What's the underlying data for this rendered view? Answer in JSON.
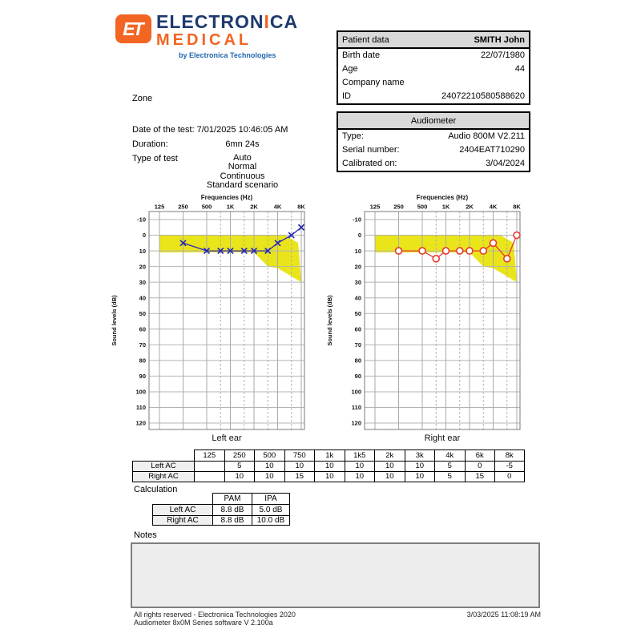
{
  "logo": {
    "icon_text": "ET",
    "line1_start": "ELECTRON",
    "line1_accent": "I",
    "line1_end": "CA",
    "line2": "MEDICAL",
    "tagline": "by Electronica Technologies"
  },
  "patient": {
    "header": "Patient data",
    "name": "SMITH John",
    "rows": [
      {
        "label": "Birth date",
        "value": "22/07/1980"
      },
      {
        "label": "Age",
        "value": "44"
      },
      {
        "label": "Company name",
        "value": ""
      },
      {
        "label": "ID",
        "value": "24072210580588620"
      }
    ]
  },
  "audiometer": {
    "header": "Audiometer",
    "rows": [
      {
        "label": "Type:",
        "value": "Audio 800M V2.211"
      },
      {
        "label": "Serial number:",
        "value": "2404EAT710290"
      },
      {
        "label": "Calibrated on:",
        "value": "3/04/2024"
      }
    ]
  },
  "test_info": {
    "zone_label": "Zone",
    "rows": [
      {
        "label": "Date of the test:",
        "value": "7/01/2025 10:46:05 AM"
      },
      {
        "label": "Duration:",
        "value": "6mn 24s"
      }
    ],
    "type_label": "Type of test",
    "type_values": [
      "Auto",
      "Normal",
      "Continuous",
      "Standard scenario"
    ]
  },
  "chart_data": [
    {
      "type": "line",
      "ear": "left",
      "title": "Frequencies (Hz)",
      "ylabel": "Sound levels (dB)",
      "caption": "Left ear",
      "x_tick_labels": [
        "125",
        "250",
        "500",
        "1K",
        "2K",
        "4K",
        "8K"
      ],
      "x_tick_freqs": [
        125,
        250,
        500,
        1000,
        2000,
        4000,
        8000
      ],
      "x_minor_freqs": [
        750,
        1500,
        3000,
        6000
      ],
      "xlim": [
        125,
        8000
      ],
      "ylim": [
        -10,
        120
      ],
      "y_tick_step": 10,
      "marker": "x",
      "series_color": "#2a2ab5",
      "frequencies_hz": [
        250,
        500,
        750,
        1000,
        1500,
        2000,
        3000,
        4000,
        6000,
        8000
      ],
      "values_db": [
        5,
        10,
        10,
        10,
        10,
        10,
        10,
        5,
        0,
        -5
      ],
      "normal_zone_color": "#e9e51a",
      "normal_zone_polygon": [
        [
          125,
          0
        ],
        [
          5000,
          0
        ],
        [
          7300,
          5
        ],
        [
          8000,
          30
        ],
        [
          4000,
          21
        ],
        [
          3000,
          20
        ],
        [
          2000,
          11
        ],
        [
          125,
          11
        ]
      ]
    },
    {
      "type": "line",
      "ear": "right",
      "title": "Frequencies (Hz)",
      "ylabel": "Sound levels (dB)",
      "caption": "Right ear",
      "x_tick_labels": [
        "125",
        "250",
        "500",
        "1K",
        "2K",
        "4K",
        "8K"
      ],
      "x_tick_freqs": [
        125,
        250,
        500,
        1000,
        2000,
        4000,
        8000
      ],
      "x_minor_freqs": [
        750,
        1500,
        3000,
        6000
      ],
      "xlim": [
        125,
        8000
      ],
      "ylim": [
        -10,
        120
      ],
      "y_tick_step": 10,
      "marker": "o",
      "series_color": "#e23b2e",
      "frequencies_hz": [
        250,
        500,
        750,
        1000,
        1500,
        2000,
        3000,
        4000,
        6000,
        8000
      ],
      "values_db": [
        10,
        10,
        15,
        10,
        10,
        10,
        10,
        5,
        15,
        0
      ],
      "normal_zone_color": "#e9e51a",
      "normal_zone_polygon": [
        [
          125,
          0
        ],
        [
          5000,
          0
        ],
        [
          7300,
          5
        ],
        [
          8000,
          30
        ],
        [
          4000,
          21
        ],
        [
          3000,
          20
        ],
        [
          2000,
          11
        ],
        [
          125,
          11
        ]
      ]
    }
  ],
  "results_table": {
    "columns": [
      "125",
      "250",
      "500",
      "750",
      "1k",
      "1k5",
      "2k",
      "3k",
      "4k",
      "6k",
      "8k"
    ],
    "rows": [
      {
        "label": "Left AC",
        "values": [
          "",
          "5",
          "10",
          "10",
          "10",
          "10",
          "10",
          "10",
          "5",
          "0",
          "-5"
        ]
      },
      {
        "label": "Right AC",
        "values": [
          "",
          "10",
          "10",
          "15",
          "10",
          "10",
          "10",
          "10",
          "5",
          "15",
          "0"
        ]
      }
    ]
  },
  "calculation": {
    "label": "Calculation",
    "columns": [
      "PAM",
      "IPA"
    ],
    "rows": [
      {
        "label": "Left AC",
        "values": [
          "8.8 dB",
          "5.0 dB"
        ]
      },
      {
        "label": "Right AC",
        "values": [
          "8.8 dB",
          "10.0 dB"
        ]
      }
    ]
  },
  "notes": {
    "label": "Notes",
    "content": ""
  },
  "footer": {
    "line1": "All rights reserved - Electronica Technologies 2020",
    "line2": "Audiometer 8x0M Series software V 2.100a",
    "datetime": "3/03/2025 11:08:19 AM"
  },
  "colors": {
    "accent_orange": "#f26522",
    "brand_navy": "#1e3a6e",
    "tagline_blue": "#2167ae",
    "table_header_gray": "#d9d9d9",
    "normal_zone_yellow": "#e9e51a",
    "left_marker_blue": "#2a2ab5",
    "right_marker_red": "#e23b2e",
    "grid_gray": "#b0b0b0",
    "notes_bg": "#ededed"
  }
}
